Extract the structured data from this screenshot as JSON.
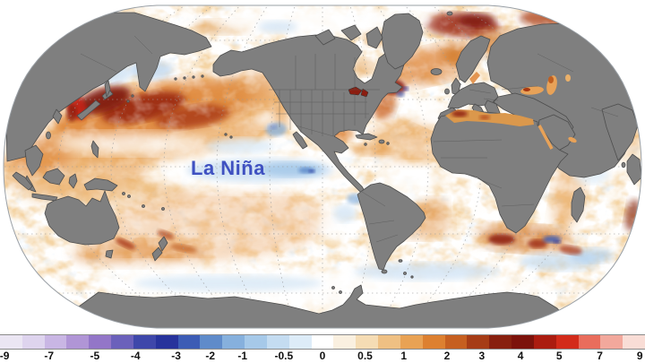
{
  "map": {
    "annotation": "La Niña",
    "annotation_color": "#3f51c1",
    "land_color": "#7f7f7f",
    "land_border_color": "#4d4d4d",
    "ocean_base_color": "#ffffff",
    "graticule_color": "#9b9b9b",
    "outline_color": "#9aa0a6"
  },
  "colorbar": {
    "label_color": "#111111",
    "colors": [
      "#ebe6f3",
      "#ded4ee",
      "#c9b6e4",
      "#b095d6",
      "#9376c8",
      "#6b61bb",
      "#3e47aa",
      "#27339c",
      "#3c5cb5",
      "#5f8bca",
      "#86b0dd",
      "#a6c9e9",
      "#c4dcf1",
      "#ddecf8",
      "#ffffff",
      "#faf0e0",
      "#f5dcb4",
      "#efc083",
      "#e9a254",
      "#dd8030",
      "#c65f20",
      "#a63c16",
      "#88200f",
      "#7c120b",
      "#ab1c10",
      "#d32b1a",
      "#e96d5c",
      "#f2a89c",
      "#f9ddd6"
    ],
    "ticks": [
      {
        "label": "-9",
        "pos": 0.7
      },
      {
        "label": "-7",
        "pos": 7.6
      },
      {
        "label": "-5",
        "pos": 14.7
      },
      {
        "label": "-4",
        "pos": 21.0
      },
      {
        "label": "-3",
        "pos": 27.3
      },
      {
        "label": "-2",
        "pos": 32.6
      },
      {
        "label": "-1",
        "pos": 37.6
      },
      {
        "label": "-0.5",
        "pos": 44.0
      },
      {
        "label": "0",
        "pos": 50.0
      },
      {
        "label": "0.5",
        "pos": 56.6
      },
      {
        "label": "1",
        "pos": 62.6
      },
      {
        "label": "2",
        "pos": 69.3
      },
      {
        "label": "3",
        "pos": 74.7
      },
      {
        "label": "4",
        "pos": 80.7
      },
      {
        "label": "5",
        "pos": 86.7
      },
      {
        "label": "7",
        "pos": 93.0
      },
      {
        "label": "9",
        "pos": 99.2
      }
    ]
  },
  "chart_data": {
    "type": "heatmap",
    "title": "",
    "annotation": "La Niña",
    "legend_ticks": [
      "-9",
      "-7",
      "-5",
      "-4",
      "-3",
      "-2",
      "-1",
      "-0.5",
      "0",
      "0.5",
      "1",
      "2",
      "3",
      "4",
      "5",
      "7",
      "9"
    ],
    "legend_position": "bottom",
    "value_range": [
      -9,
      9
    ]
  }
}
